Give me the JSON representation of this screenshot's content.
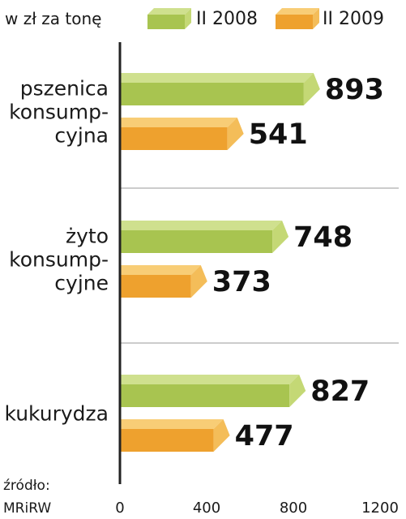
{
  "chart_data": {
    "type": "bar",
    "orientation": "horizontal",
    "unit_label": "w zł za tonę",
    "title": "",
    "xlabel": "",
    "ylabel": "",
    "categories": [
      [
        "pszenica",
        "konsump-",
        "cyjna"
      ],
      [
        "żyto",
        "konsump-",
        "cyjne"
      ],
      [
        "kukurydza"
      ]
    ],
    "series": [
      {
        "name": "II 2008",
        "values": [
          893,
          748,
          827
        ]
      },
      {
        "name": "II 2009",
        "values": [
          541,
          373,
          477
        ]
      }
    ],
    "xlim": [
      0,
      1200
    ],
    "x_ticks": [
      "0",
      "400",
      "800",
      "1200"
    ],
    "legend_position": "top",
    "grid": true,
    "colors": {
      "II 2008": {
        "front": "#a8c450",
        "top": "#cfe08e",
        "side": "#c4d875"
      },
      "II 2009": {
        "front": "#eea12e",
        "top": "#f8cd76",
        "side": "#f4bd59"
      }
    },
    "source": [
      "źródło:",
      "MRiRW"
    ]
  }
}
